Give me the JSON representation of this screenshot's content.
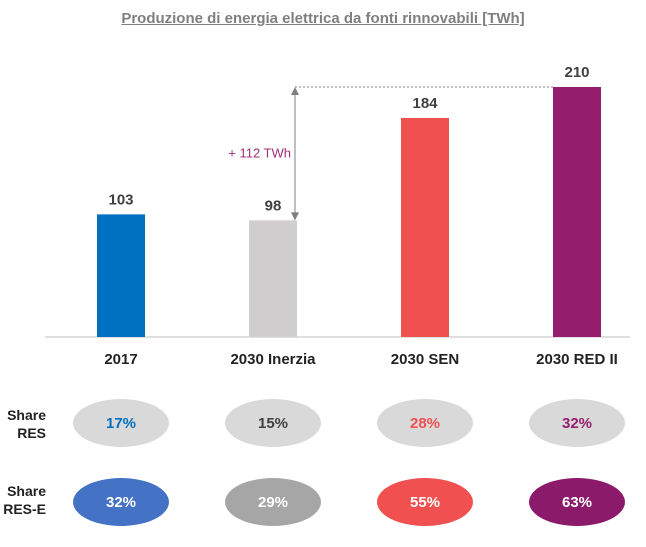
{
  "chart_data": {
    "type": "bar",
    "title": "Produzione di energia elettrica da fonti rinnovabili [TWh]",
    "categories": [
      "2017",
      "2030 Inerzia",
      "2030 SEN",
      "2030 RED II"
    ],
    "values": [
      103,
      98,
      184,
      210
    ],
    "colors": [
      "#0070c0",
      "#d0cece",
      "#f05050",
      "#951e6e"
    ],
    "ylim": [
      0,
      210
    ],
    "grid": false,
    "annotation": {
      "text": "+ 112 TWh",
      "from_category": "2030 Inerzia",
      "from_value": 98,
      "to_value": 210,
      "color": "#a0307a"
    }
  },
  "share_rows": [
    {
      "label_lines": [
        "Share",
        "RES"
      ],
      "values": [
        "17%",
        "15%",
        "28%",
        "32%"
      ],
      "text_colors": [
        "#0070c0",
        "#404040",
        "#f05050",
        "#951e6e"
      ]
    },
    {
      "label_lines": [
        "Share",
        "RES-E"
      ],
      "values": [
        "32%",
        "29%",
        "55%",
        "63%"
      ],
      "fill_colors": [
        "#4472c4",
        "#a6a6a6",
        "#f05050",
        "#8b1a6b"
      ]
    }
  ]
}
